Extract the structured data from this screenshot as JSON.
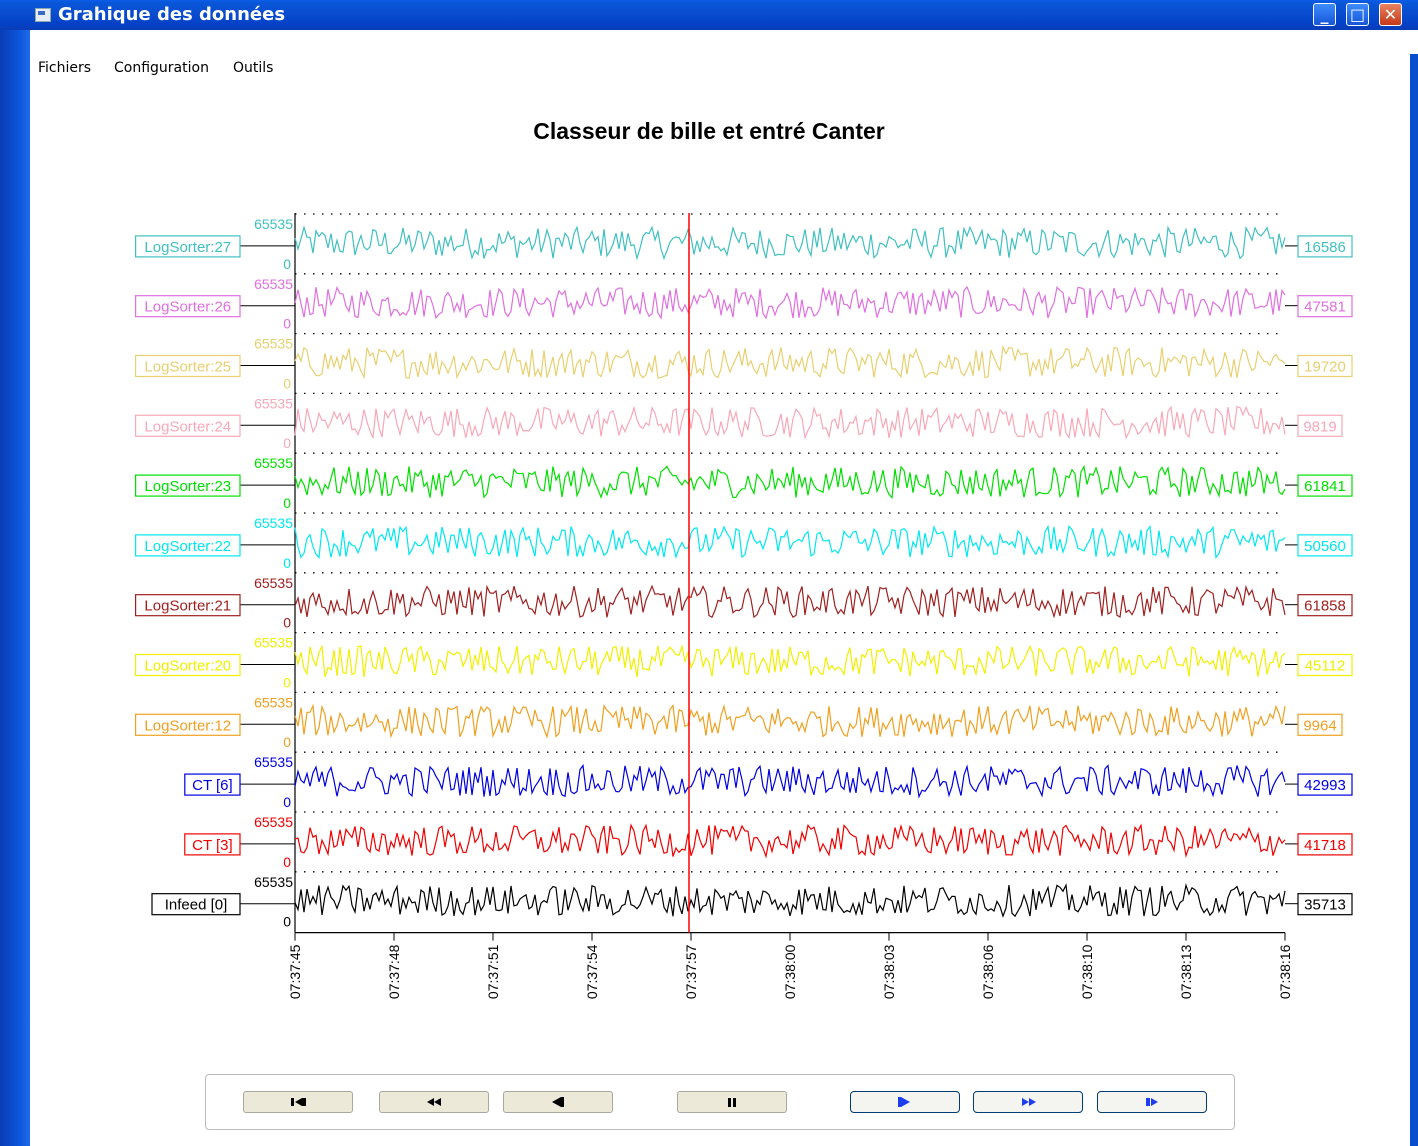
{
  "window": {
    "title": "Grahique des données",
    "controls": [
      "minimize",
      "maximize",
      "close"
    ]
  },
  "menu": [
    "Fichiers",
    "Configuration",
    "Outils"
  ],
  "chart_data": {
    "type": "line",
    "title": "Classeur de bille et entré Canter",
    "y_min": "0",
    "y_max": "65535",
    "ylim": [
      0,
      65535
    ],
    "x_tick_labels": [
      "07:37:45",
      "07:37:48",
      "07:37:51",
      "07:37:54",
      "07:37:57",
      "07:38:00",
      "07:38:03",
      "07:38:06",
      "07:38:10",
      "07:38:13",
      "07:38:16"
    ],
    "cursor_time": "07:37:57",
    "cursor_color": "#ff0000",
    "grid": "dotted horizontal",
    "series": [
      {
        "name": "LogSorter:27",
        "color": "#40c0c0",
        "current": "16586"
      },
      {
        "name": "LogSorter:26",
        "color": "#e070e0",
        "current": "47581"
      },
      {
        "name": "LogSorter:25",
        "color": "#e8d070",
        "current": "19720"
      },
      {
        "name": "LogSorter:24",
        "color": "#f8a8b8",
        "current": "9819"
      },
      {
        "name": "LogSorter:23",
        "color": "#00e000",
        "current": "61841"
      },
      {
        "name": "LogSorter:22",
        "color": "#00e8f0",
        "current": "50560"
      },
      {
        "name": "LogSorter:21",
        "color": "#a02020",
        "current": "61858"
      },
      {
        "name": "LogSorter:20",
        "color": "#f0f000",
        "current": "45112"
      },
      {
        "name": "LogSorter:12",
        "color": "#f0a020",
        "current": "9964"
      },
      {
        "name": "CT [6]",
        "color": "#0000e0",
        "current": "42993"
      },
      {
        "name": "CT [3]",
        "color": "#f00000",
        "current": "41718"
      },
      {
        "name": "Infeed [0]",
        "color": "#000000",
        "current": "35713"
      }
    ]
  },
  "playback": {
    "buttons": [
      {
        "name": "go-start-button",
        "icon": "go-start-icon",
        "active": false
      },
      {
        "name": "fast-rewind-button",
        "icon": "fast-rewind-icon",
        "active": false
      },
      {
        "name": "rewind-button",
        "icon": "rewind-icon",
        "active": false
      },
      {
        "name": "pause-button",
        "icon": "pause-icon",
        "active": false
      },
      {
        "name": "play-button",
        "icon": "play-icon",
        "active": true
      },
      {
        "name": "fast-forward-button",
        "icon": "fast-forward-icon",
        "active": true
      },
      {
        "name": "go-end-button",
        "icon": "go-end-icon",
        "active": true
      }
    ]
  }
}
